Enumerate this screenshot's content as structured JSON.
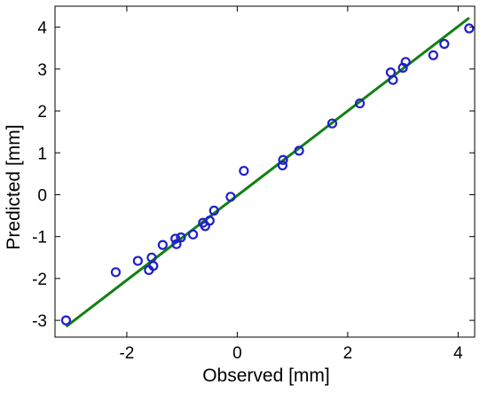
{
  "chart_data": {
    "type": "scatter",
    "title": "",
    "xlabel": "Observed [mm]",
    "ylabel": "Predicted [mm]",
    "xlim": [
      -3.3,
      4.3
    ],
    "ylim": [
      -3.4,
      4.5
    ],
    "xticks": [
      -2,
      0,
      2,
      4
    ],
    "yticks": [
      -3,
      -2,
      -1,
      0,
      1,
      2,
      3,
      4
    ],
    "xtick_labels": [
      "-2",
      "0",
      "2",
      "4"
    ],
    "ytick_labels": [
      "-3",
      "-2",
      "-1",
      "0",
      "1",
      "2",
      "3",
      "4"
    ],
    "grid": false,
    "legend": "none",
    "series": [
      {
        "kind": "points",
        "marker": "open-circle",
        "color": "#1f1fcc",
        "points": [
          [
            -3.1,
            -3.0
          ],
          [
            -2.2,
            -1.85
          ],
          [
            -1.8,
            -1.58
          ],
          [
            -1.6,
            -1.8
          ],
          [
            -1.55,
            -1.5
          ],
          [
            -1.52,
            -1.7
          ],
          [
            -1.35,
            -1.2
          ],
          [
            -1.12,
            -1.05
          ],
          [
            -1.1,
            -1.18
          ],
          [
            -1.02,
            -1.02
          ],
          [
            -0.8,
            -0.95
          ],
          [
            -0.62,
            -0.67
          ],
          [
            -0.58,
            -0.75
          ],
          [
            -0.5,
            -0.62
          ],
          [
            -0.42,
            -0.38
          ],
          [
            -0.12,
            -0.05
          ],
          [
            0.12,
            0.57
          ],
          [
            0.82,
            0.7
          ],
          [
            0.83,
            0.83
          ],
          [
            1.12,
            1.05
          ],
          [
            1.72,
            1.7
          ],
          [
            2.22,
            2.18
          ],
          [
            2.78,
            2.92
          ],
          [
            2.82,
            2.74
          ],
          [
            3.0,
            3.03
          ],
          [
            3.05,
            3.17
          ],
          [
            3.55,
            3.33
          ],
          [
            3.75,
            3.6
          ],
          [
            4.2,
            3.97
          ]
        ]
      },
      {
        "kind": "fit-line",
        "color": "#128112",
        "points": [
          [
            -3.1,
            -3.15
          ],
          [
            4.2,
            4.22
          ]
        ]
      }
    ]
  }
}
